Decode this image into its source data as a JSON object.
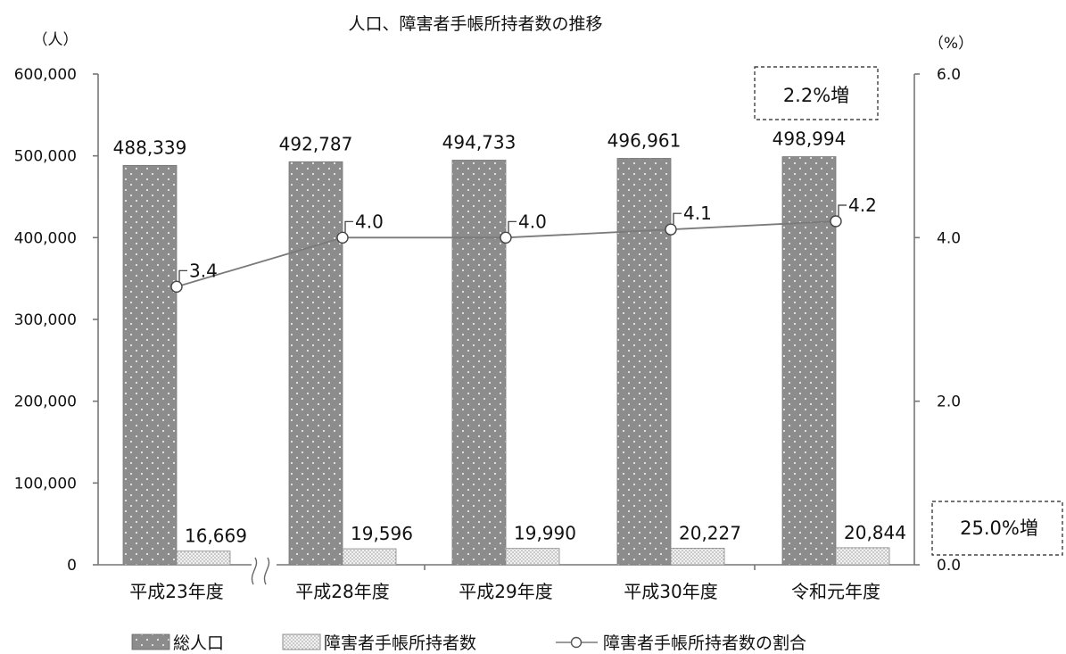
{
  "chart_data": {
    "type": "bar",
    "title": "人口、障害者手帳所持者数の推移",
    "y_left_unit": "（人）",
    "y_right_unit": "（%）",
    "categories": [
      "平成23年度",
      "平成28年度",
      "平成29年度",
      "平成30年度",
      "令和元年度"
    ],
    "y_left_ticks": [
      "0",
      "100,000",
      "200,000",
      "300,000",
      "400,000",
      "500,000",
      "600,000"
    ],
    "y_right_ticks": [
      "0.0",
      "2.0",
      "4.0",
      "6.0"
    ],
    "ylim_left": [
      0,
      600000
    ],
    "ylim_right": [
      0,
      6
    ],
    "axis_break_between": [
      "平成23年度",
      "平成28年度"
    ],
    "series": [
      {
        "name": "総人口",
        "kind": "bar",
        "axis": "left",
        "pattern": "dots",
        "color": "#8c8c8c",
        "values": [
          488339,
          492787,
          494733,
          496961,
          498994
        ],
        "labels": [
          "488,339",
          "492,787",
          "494,733",
          "496,961",
          "498,994"
        ]
      },
      {
        "name": "障害者手帳所持者数",
        "kind": "bar",
        "axis": "left",
        "pattern": "fine-dots",
        "color": "#e4e4e4",
        "values": [
          16669,
          19596,
          19990,
          20227,
          20844
        ],
        "labels": [
          "16,669",
          "19,596",
          "19,990",
          "20,227",
          "20,844"
        ]
      },
      {
        "name": "障害者手帳所持者数の割合",
        "kind": "line",
        "axis": "right",
        "marker": "open-circle",
        "color": "#7a7a7a",
        "values": [
          3.4,
          4.0,
          4.0,
          4.1,
          4.2
        ],
        "labels": [
          "3.4",
          "4.0",
          "4.0",
          "4.1",
          "4.2"
        ]
      }
    ],
    "callouts": [
      "2.2%増",
      "25.0%増"
    ],
    "legend_placement": "bottom",
    "grid": false
  }
}
